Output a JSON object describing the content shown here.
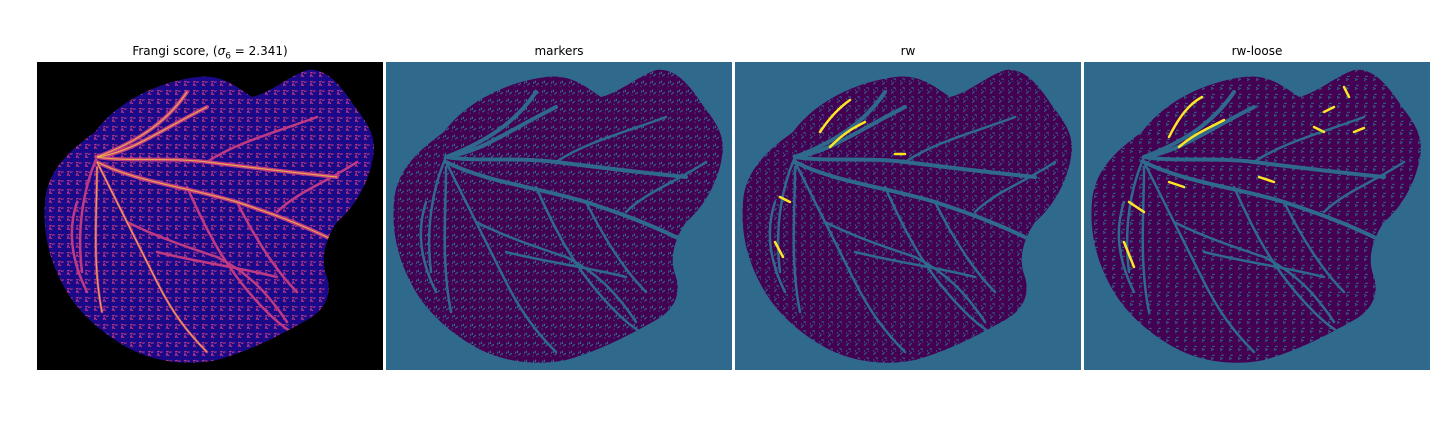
{
  "panels": [
    {
      "id": "frangi",
      "title_prefix": "Frangi score, (",
      "title_sigma": "σ",
      "title_sub": "6",
      "title_suffix": " = 2.341)",
      "colormap": "plasma",
      "background": "#000000",
      "tissue": "#1a0a8a",
      "vessel": "#c03a83",
      "highlight": "#f7d03c"
    },
    {
      "id": "markers",
      "title": "markers",
      "colormap": "viridis",
      "background": "#2f6a8c",
      "tissue": "#440154",
      "vessel": "#2f6a8c"
    },
    {
      "id": "rw",
      "title": "rw",
      "colormap": "viridis",
      "background": "#2f6a8c",
      "tissue": "#440154",
      "vessel": "#2f6a8c",
      "highlight": "#fde725"
    },
    {
      "id": "rw-loose",
      "title": "rw-loose",
      "colormap": "viridis",
      "background": "#2f6a8c",
      "tissue": "#440154",
      "vessel": "#2f6a8c",
      "highlight": "#fde725"
    }
  ]
}
